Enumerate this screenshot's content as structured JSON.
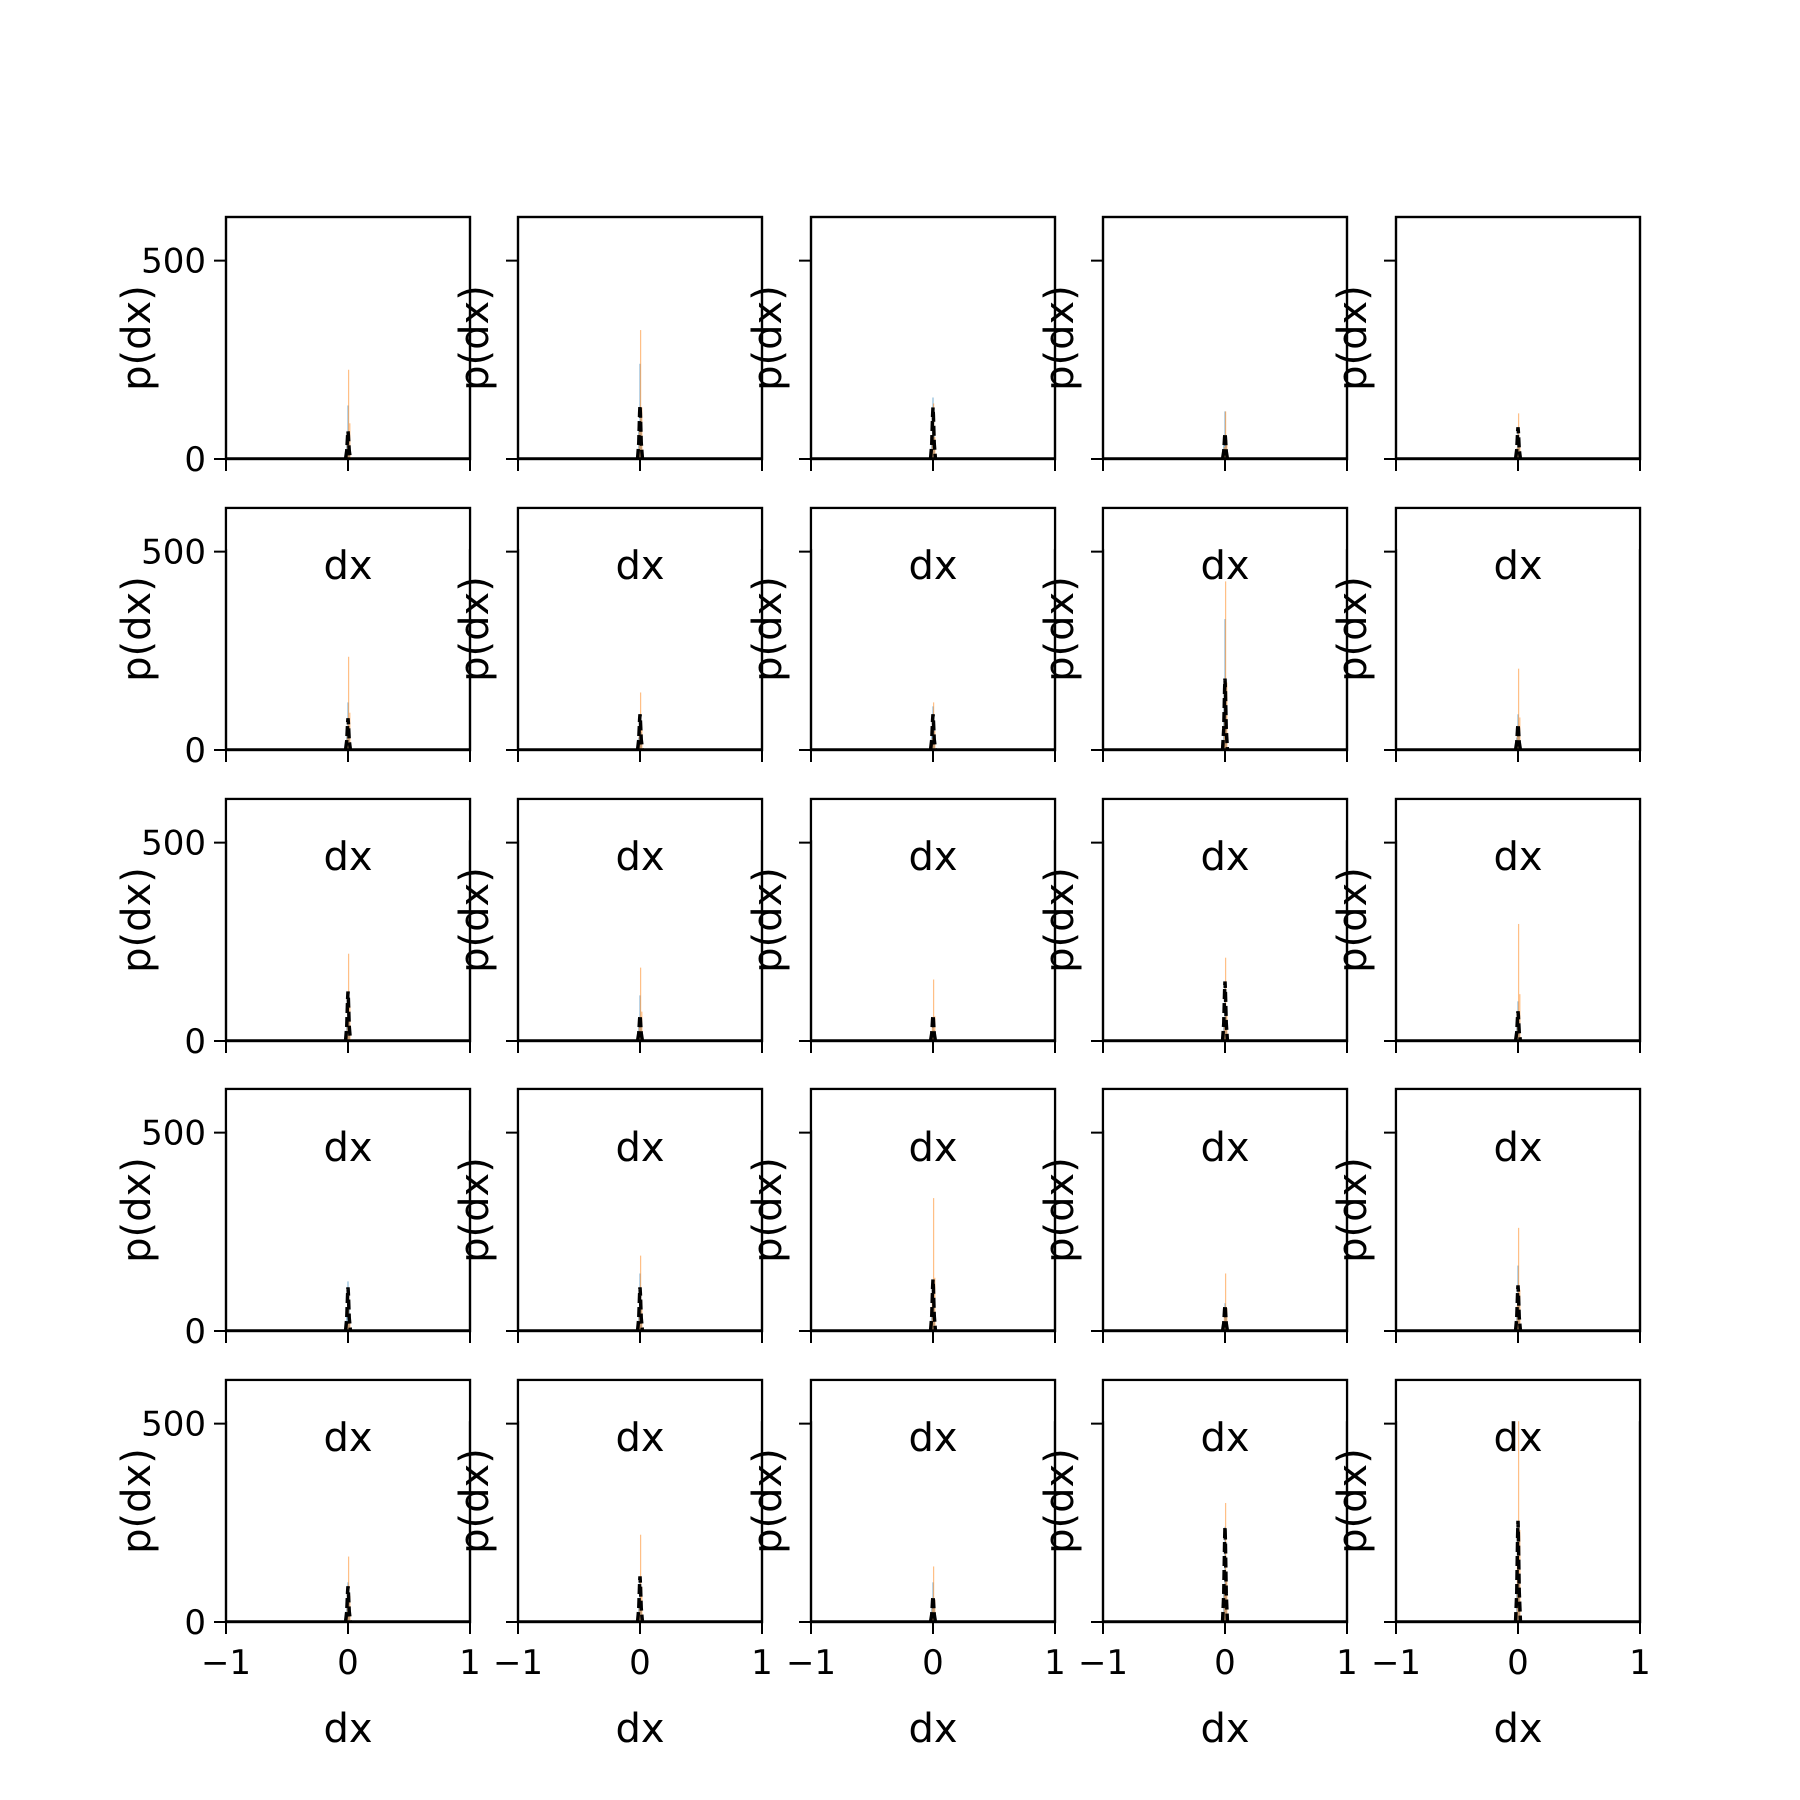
{
  "chart_data": {
    "type": "bar",
    "layout": "5x5 grid of histograms",
    "xlabel": "dx",
    "ylabel": "p(dx)",
    "xlim": [
      -1,
      1
    ],
    "ylim": [
      0,
      610
    ],
    "xticks": [
      -1,
      0,
      1
    ],
    "xtick_labels": [
      "−1",
      "0",
      "1"
    ],
    "yticks": [
      0,
      500
    ],
    "ytick_labels": [
      "0",
      "500"
    ],
    "grid": false,
    "legend": "none",
    "colors": {
      "hist_a": "#1f77b4",
      "hist_b": "#ff7f0e",
      "dashed": "#000000",
      "axes": "#000000"
    },
    "bin_x": [
      -0.015,
      -0.005,
      0.005
    ],
    "panels": [
      {
        "row": 1,
        "col": 1,
        "peak_a": 135,
        "peak_b": 225,
        "peak_dashed": 70
      },
      {
        "row": 1,
        "col": 2,
        "peak_a": 240,
        "peak_b": 325,
        "peak_dashed": 135
      },
      {
        "row": 1,
        "col": 3,
        "peak_a": 155,
        "peak_b": 140,
        "peak_dashed": 130
      },
      {
        "row": 1,
        "col": 4,
        "peak_a": 120,
        "peak_b": 120,
        "peak_dashed": 65
      },
      {
        "row": 1,
        "col": 5,
        "peak_a": 75,
        "peak_b": 115,
        "peak_dashed": 80
      },
      {
        "row": 2,
        "col": 1,
        "peak_a": 120,
        "peak_b": 235,
        "peak_dashed": 80
      },
      {
        "row": 2,
        "col": 2,
        "peak_a": 90,
        "peak_b": 145,
        "peak_dashed": 90
      },
      {
        "row": 2,
        "col": 3,
        "peak_a": 110,
        "peak_b": 120,
        "peak_dashed": 90
      },
      {
        "row": 2,
        "col": 4,
        "peak_a": 330,
        "peak_b": 425,
        "peak_dashed": 180
      },
      {
        "row": 2,
        "col": 5,
        "peak_a": 90,
        "peak_b": 205,
        "peak_dashed": 65
      },
      {
        "row": 3,
        "col": 1,
        "peak_a": 110,
        "peak_b": 220,
        "peak_dashed": 125
      },
      {
        "row": 3,
        "col": 2,
        "peak_a": 115,
        "peak_b": 185,
        "peak_dashed": 65
      },
      {
        "row": 3,
        "col": 3,
        "peak_a": 55,
        "peak_b": 155,
        "peak_dashed": 65
      },
      {
        "row": 3,
        "col": 4,
        "peak_a": 150,
        "peak_b": 210,
        "peak_dashed": 150
      },
      {
        "row": 3,
        "col": 5,
        "peak_a": 100,
        "peak_b": 295,
        "peak_dashed": 75
      },
      {
        "row": 4,
        "col": 1,
        "peak_a": 125,
        "peak_b": 90,
        "peak_dashed": 110
      },
      {
        "row": 4,
        "col": 2,
        "peak_a": 145,
        "peak_b": 190,
        "peak_dashed": 110
      },
      {
        "row": 4,
        "col": 3,
        "peak_a": 125,
        "peak_b": 335,
        "peak_dashed": 130
      },
      {
        "row": 4,
        "col": 4,
        "peak_a": 70,
        "peak_b": 145,
        "peak_dashed": 65
      },
      {
        "row": 4,
        "col": 5,
        "peak_a": 165,
        "peak_b": 260,
        "peak_dashed": 115
      },
      {
        "row": 5,
        "col": 1,
        "peak_a": 100,
        "peak_b": 165,
        "peak_dashed": 90
      },
      {
        "row": 5,
        "col": 2,
        "peak_a": 105,
        "peak_b": 220,
        "peak_dashed": 115
      },
      {
        "row": 5,
        "col": 3,
        "peak_a": 100,
        "peak_b": 140,
        "peak_dashed": 65
      },
      {
        "row": 5,
        "col": 4,
        "peak_a": 240,
        "peak_b": 300,
        "peak_dashed": 240
      },
      {
        "row": 5,
        "col": 5,
        "peak_a": 240,
        "peak_b": 580,
        "peak_dashed": 255
      }
    ]
  }
}
